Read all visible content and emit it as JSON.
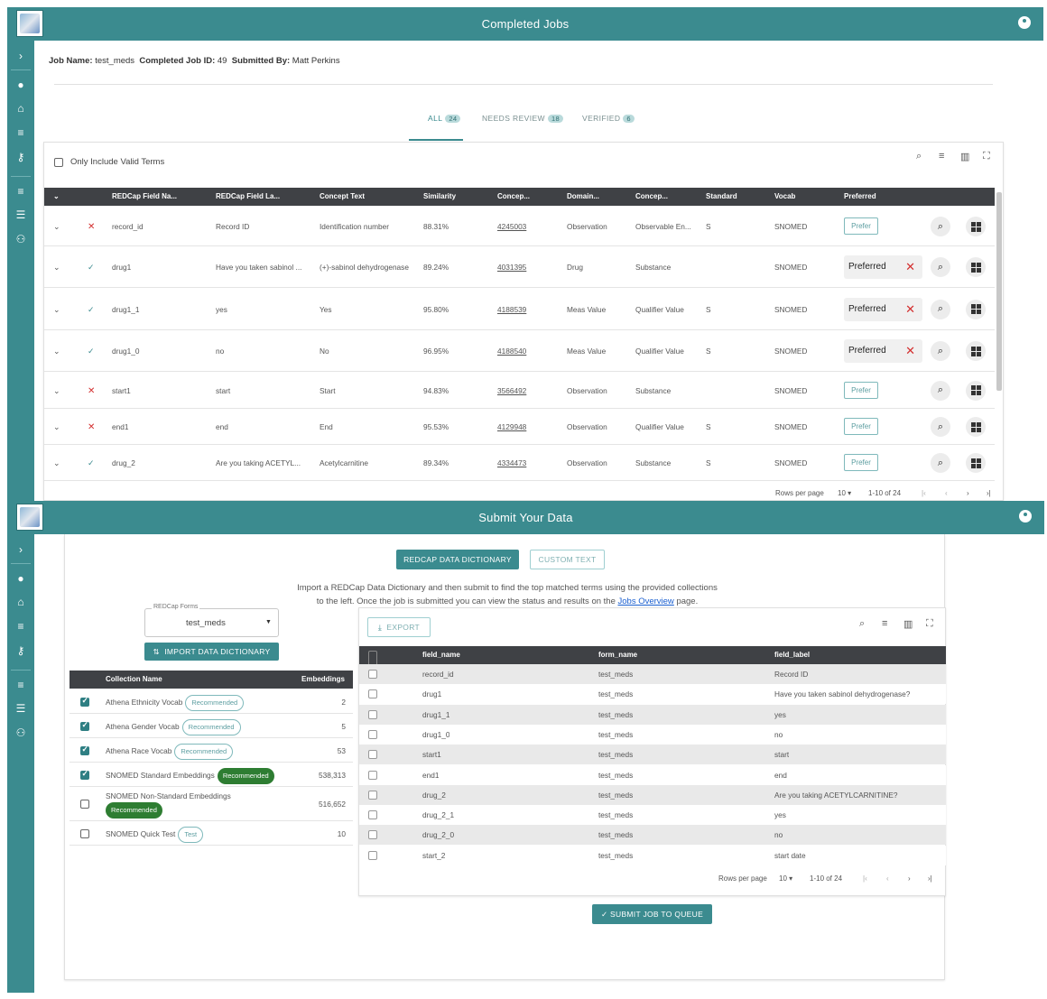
{
  "top": {
    "app_title": "Completed Jobs",
    "job": {
      "name_label": "Job Name:",
      "name_value": "test_meds",
      "id_label": "Completed Job ID:",
      "id_value": "49",
      "by_label": "Submitted By:",
      "by_value": "Matt Perkins"
    },
    "tabs": [
      {
        "label": "ALL",
        "count": "24"
      },
      {
        "label": "NEEDS REVIEW",
        "count": "18"
      },
      {
        "label": "VERIFIED",
        "count": "6"
      }
    ],
    "filter_label": "Only Include Valid Terms",
    "columns": [
      "REDCap Field Na...",
      "REDCap Field La...",
      "Concept Text",
      "Similarity",
      "Concep...",
      "Domain...",
      "Concep...",
      "Standard",
      "Vocab",
      "Preferred"
    ],
    "rows": [
      {
        "status": "x",
        "field_name": "record_id",
        "field_label": "Record ID",
        "concept_text": "Identification number",
        "similarity": "88.31%",
        "concept_id": "4245003",
        "domain": "Observation",
        "concept_class": "Observable En...",
        "standard": "S",
        "vocab": "SNOMED",
        "preferred": false
      },
      {
        "status": "check",
        "field_name": "drug1",
        "field_label": "Have you taken sabinol ...",
        "concept_text": "(+)-sabinol dehydrogenase",
        "similarity": "89.24%",
        "concept_id": "4031395",
        "domain": "Drug",
        "concept_class": "Substance",
        "standard": "",
        "vocab": "SNOMED",
        "preferred": true
      },
      {
        "status": "check",
        "field_name": "drug1_1",
        "field_label": "yes",
        "concept_text": "Yes",
        "similarity": "95.80%",
        "concept_id": "4188539",
        "domain": "Meas Value",
        "concept_class": "Qualifier Value",
        "standard": "S",
        "vocab": "SNOMED",
        "preferred": true
      },
      {
        "status": "check",
        "field_name": "drug1_0",
        "field_label": "no",
        "concept_text": "No",
        "similarity": "96.95%",
        "concept_id": "4188540",
        "domain": "Meas Value",
        "concept_class": "Qualifier Value",
        "standard": "S",
        "vocab": "SNOMED",
        "preferred": true
      },
      {
        "status": "x",
        "field_name": "start1",
        "field_label": "start",
        "concept_text": "Start",
        "similarity": "94.83%",
        "concept_id": "3566492",
        "domain": "Observation",
        "concept_class": "Substance",
        "standard": "",
        "vocab": "SNOMED",
        "preferred": false
      },
      {
        "status": "x",
        "field_name": "end1",
        "field_label": "end",
        "concept_text": "End",
        "similarity": "95.53%",
        "concept_id": "4129948",
        "domain": "Observation",
        "concept_class": "Qualifier Value",
        "standard": "S",
        "vocab": "SNOMED",
        "preferred": false
      },
      {
        "status": "check",
        "field_name": "drug_2",
        "field_label": "Are you taking ACETYL...",
        "concept_text": "Acetylcarnitine",
        "similarity": "89.34%",
        "concept_id": "4334473",
        "domain": "Observation",
        "concept_class": "Substance",
        "standard": "S",
        "vocab": "SNOMED",
        "preferred": false
      }
    ],
    "prefer_label": "Prefer",
    "preferred_label": "Preferred",
    "pagination": {
      "rows_label": "Rows per page",
      "rows_value": "10",
      "range": "1-10 of 24"
    }
  },
  "bottom": {
    "app_title": "Submit Your Data",
    "mode_buttons": {
      "redcap": "REDCAP DATA DICTIONARY",
      "custom": "CUSTOM TEXT"
    },
    "intro_line1": "Import a REDCap Data Dictionary and then submit to find the top matched terms using the provided collections",
    "intro_line2_pre": "to the left. Once the job is submitted you can view the status and results on the",
    "intro_link": "Jobs Overview",
    "intro_line2_post": "page.",
    "forms_label": "REDCap Forms",
    "forms_value": "test_meds",
    "import_button": "IMPORT DATA DICTIONARY",
    "collections_header": {
      "name": "Collection Name",
      "embeddings": "Embeddings"
    },
    "collections": [
      {
        "name": "Athena Ethnicity Vocab",
        "tag": "Recommended",
        "tag_style": "outline",
        "count": "2",
        "checked": true
      },
      {
        "name": "Athena Gender Vocab",
        "tag": "Recommended",
        "tag_style": "outline",
        "count": "5",
        "checked": true
      },
      {
        "name": "Athena Race Vocab",
        "tag": "Recommended",
        "tag_style": "outline",
        "count": "53",
        "checked": true
      },
      {
        "name": "SNOMED Standard Embeddings",
        "tag": "Recommended",
        "tag_style": "filled",
        "count": "538,313",
        "checked": true
      },
      {
        "name": "SNOMED Non-Standard Embeddings",
        "tag": "Recommended",
        "tag_style": "filled",
        "count": "516,652",
        "checked": false
      },
      {
        "name": "SNOMED Quick Test",
        "tag": "Test",
        "tag_style": "outline",
        "count": "10",
        "checked": false
      }
    ],
    "export_label": "EXPORT",
    "dict_columns": [
      "field_name",
      "form_name",
      "field_label"
    ],
    "dict_rows": [
      [
        "record_id",
        "test_meds",
        "Record ID"
      ],
      [
        "drug1",
        "test_meds",
        "Have you taken sabinol dehydrogenase?"
      ],
      [
        "drug1_1",
        "test_meds",
        "yes"
      ],
      [
        "drug1_0",
        "test_meds",
        "no"
      ],
      [
        "start1",
        "test_meds",
        "start"
      ],
      [
        "end1",
        "test_meds",
        "end"
      ],
      [
        "drug_2",
        "test_meds",
        "Are you taking ACETYLCARNITINE?"
      ],
      [
        "drug_2_1",
        "test_meds",
        "yes"
      ],
      [
        "drug_2_0",
        "test_meds",
        "no"
      ],
      [
        "start_2",
        "test_meds",
        "start date"
      ]
    ],
    "pagination": {
      "rows_label": "Rows per page",
      "rows_value": "10",
      "range": "1-10 of 24"
    },
    "submit_label": "SUBMIT JOB TO QUEUE"
  }
}
